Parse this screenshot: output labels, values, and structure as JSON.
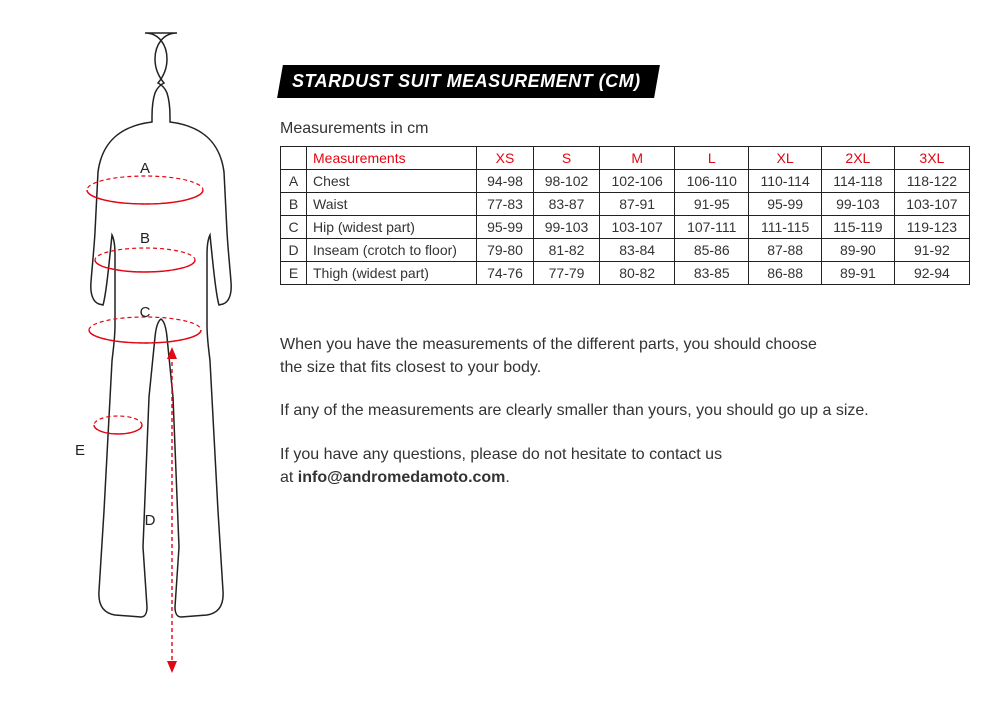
{
  "title": "STARDUST SUIT MEASUREMENT (CM)",
  "subtitle": "Measurements in cm",
  "colors": {
    "accent": "#e30613",
    "text": "#333333",
    "border": "#222222",
    "title_bg": "#000000",
    "title_fg": "#ffffff",
    "bg": "#ffffff"
  },
  "table": {
    "header_label": "Measurements",
    "sizes": [
      "XS",
      "S",
      "M",
      "L",
      "XL",
      "2XL",
      "3XL"
    ],
    "rows": [
      {
        "letter": "A",
        "name": "Chest",
        "values": [
          "94-98",
          "98-102",
          "102-106",
          "106-110",
          "110-114",
          "114-118",
          "118-122"
        ]
      },
      {
        "letter": "B",
        "name": "Waist",
        "values": [
          "77-83",
          "83-87",
          "87-91",
          "91-95",
          "95-99",
          "99-103",
          "103-107"
        ]
      },
      {
        "letter": "C",
        "name": "Hip (widest part)",
        "values": [
          "95-99",
          "99-103",
          "103-107",
          "107-111",
          "111-115",
          "115-119",
          "119-123"
        ]
      },
      {
        "letter": "D",
        "name": "Inseam (crotch to floor)",
        "values": [
          "79-80",
          "81-82",
          "83-84",
          "85-86",
          "87-88",
          "89-90",
          "91-92"
        ]
      },
      {
        "letter": "E",
        "name": "Thigh (widest part)",
        "values": [
          "74-76",
          "77-79",
          "80-82",
          "83-85",
          "86-88",
          "89-91",
          "92-94"
        ]
      }
    ]
  },
  "notes": {
    "p1a": "When you have the measurements of the different parts, you should choose",
    "p1b": "the size that fits closest to your body.",
    "p2": "If any of the measurements are clearly smaller than yours, you should go up a size.",
    "p3a": "If you have any questions, please do not hesitate to contact us",
    "p3b_prefix": "at ",
    "email": "info@andromedamoto.com",
    "p3b_suffix": "."
  },
  "figure_labels": {
    "A": "A",
    "B": "B",
    "C": "C",
    "D": "D",
    "E": "E"
  }
}
